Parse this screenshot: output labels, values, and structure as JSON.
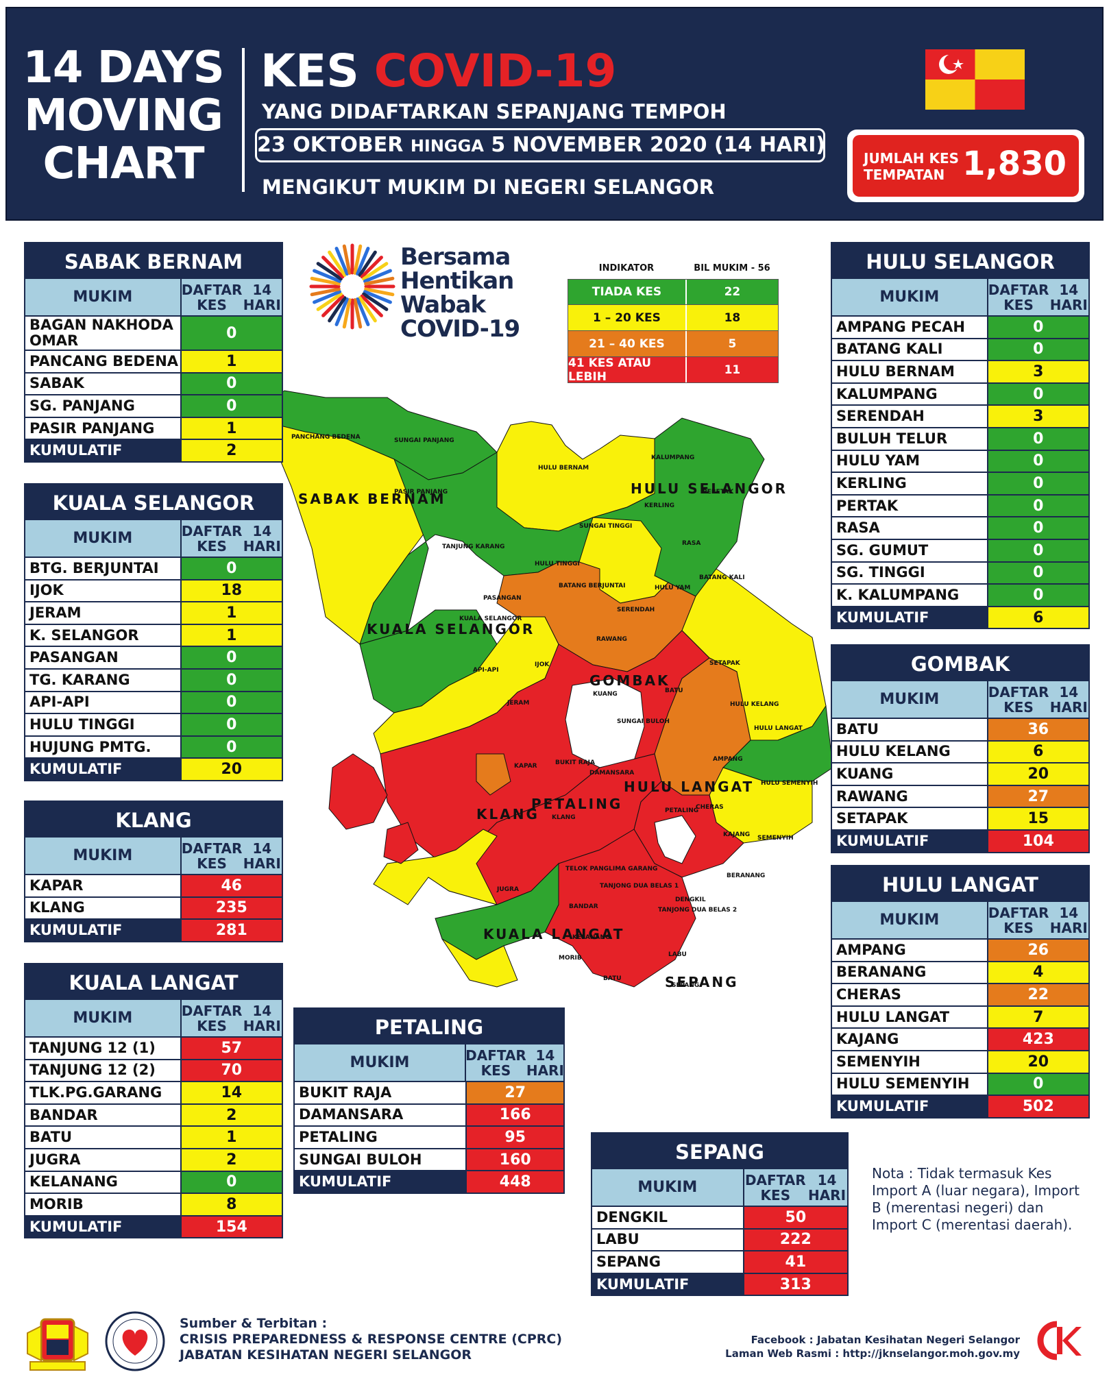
{
  "header": {
    "left_title": [
      "14 DAYS",
      "MOVING",
      "CHART"
    ],
    "title_prefix": "KES",
    "title_main": "COVID-19",
    "subtitle": "YANG DIDAFTARKAN SEPANJANG TEMPOH",
    "date_start": "23 OKTOBER",
    "date_mid": "HINGGA",
    "date_end": "5 NOVEMBER 2020 (14 HARI)",
    "mukim_line": "MENGIKUT MUKIM DI NEGERI SELANGOR",
    "total_label": [
      "JUMLAH KES",
      "TEMPATAN"
    ],
    "total_value": "1,830"
  },
  "colors": {
    "navy": "#1b2a4e",
    "green": "#2fa52f",
    "yellow": "#f9f10a",
    "orange": "#e57b1c",
    "red": "#e52228",
    "header_light_blue": "#a8cfe0"
  },
  "logo": {
    "text": [
      "Bersama",
      "Hentikan",
      "Wabak",
      "COVID-19"
    ]
  },
  "indicator": {
    "head": [
      "INDIKATOR",
      "BIL MUKIM - 56"
    ],
    "rows": [
      {
        "label": "TIADA KES",
        "value": "22",
        "color": "g"
      },
      {
        "label": "1 – 20 KES",
        "value": "18",
        "color": "y"
      },
      {
        "label": "21 – 40 KES",
        "value": "5",
        "color": "o"
      },
      {
        "label": "41 KES ATAU LEBIH",
        "value": "11",
        "color": "r"
      }
    ]
  },
  "col_headers": {
    "mukim": "MUKIM",
    "daftar": [
      "DAFTAR KES",
      "14 HARI"
    ]
  },
  "tables": {
    "sabak_bernam": {
      "title": "SABAK BERNAM",
      "rows": [
        {
          "name": "BAGAN NAKHODA OMAR",
          "value": "0",
          "color": "g"
        },
        {
          "name": "PANCANG BEDENA",
          "value": "1",
          "color": "y"
        },
        {
          "name": "SABAK",
          "value": "0",
          "color": "g"
        },
        {
          "name": "SG. PANJANG",
          "value": "0",
          "color": "g"
        },
        {
          "name": "PASIR PANJANG",
          "value": "1",
          "color": "y"
        }
      ],
      "kumulatif": {
        "name": "KUMULATIF",
        "value": "2",
        "color": "y"
      }
    },
    "kuala_selangor": {
      "title": "KUALA SELANGOR",
      "rows": [
        {
          "name": "BTG. BERJUNTAI",
          "value": "0",
          "color": "g"
        },
        {
          "name": "IJOK",
          "value": "18",
          "color": "y"
        },
        {
          "name": "JERAM",
          "value": "1",
          "color": "y"
        },
        {
          "name": "K. SELANGOR",
          "value": "1",
          "color": "y"
        },
        {
          "name": "PASANGAN",
          "value": "0",
          "color": "g"
        },
        {
          "name": "TG. KARANG",
          "value": "0",
          "color": "g"
        },
        {
          "name": "API-API",
          "value": "0",
          "color": "g"
        },
        {
          "name": "HULU TINGGI",
          "value": "0",
          "color": "g"
        },
        {
          "name": "HUJUNG PMTG.",
          "value": "0",
          "color": "g"
        }
      ],
      "kumulatif": {
        "name": "KUMULATIF",
        "value": "20",
        "color": "y"
      }
    },
    "klang": {
      "title": "KLANG",
      "rows": [
        {
          "name": "KAPAR",
          "value": "46",
          "color": "r"
        },
        {
          "name": "KLANG",
          "value": "235",
          "color": "r"
        }
      ],
      "kumulatif": {
        "name": "KUMULATIF",
        "value": "281",
        "color": "r"
      }
    },
    "kuala_langat": {
      "title": "KUALA LANGAT",
      "rows": [
        {
          "name": "TANJUNG 12 (1)",
          "value": "57",
          "color": "r"
        },
        {
          "name": "TANJUNG 12 (2)",
          "value": "70",
          "color": "r"
        },
        {
          "name": "TLK.PG.GARANG",
          "value": "14",
          "color": "y"
        },
        {
          "name": "BANDAR",
          "value": "2",
          "color": "y"
        },
        {
          "name": "BATU",
          "value": "1",
          "color": "y"
        },
        {
          "name": "JUGRA",
          "value": "2",
          "color": "y"
        },
        {
          "name": "KELANANG",
          "value": "0",
          "color": "g"
        },
        {
          "name": "MORIB",
          "value": "8",
          "color": "y"
        }
      ],
      "kumulatif": {
        "name": "KUMULATIF",
        "value": "154",
        "color": "r"
      }
    },
    "petaling": {
      "title": "PETALING",
      "rows": [
        {
          "name": "BUKIT RAJA",
          "value": "27",
          "color": "o"
        },
        {
          "name": "DAMANSARA",
          "value": "166",
          "color": "r"
        },
        {
          "name": "PETALING",
          "value": "95",
          "color": "r"
        },
        {
          "name": "SUNGAI BULOH",
          "value": "160",
          "color": "r"
        }
      ],
      "kumulatif": {
        "name": "KUMULATIF",
        "value": "448",
        "color": "r"
      }
    },
    "sepang": {
      "title": "SEPANG",
      "rows": [
        {
          "name": "DENGKIL",
          "value": "50",
          "color": "r"
        },
        {
          "name": "LABU",
          "value": "222",
          "color": "r"
        },
        {
          "name": "SEPANG",
          "value": "41",
          "color": "r"
        }
      ],
      "kumulatif": {
        "name": "KUMULATIF",
        "value": "313",
        "color": "r"
      }
    },
    "hulu_selangor": {
      "title": "HULU SELANGOR",
      "rows": [
        {
          "name": "AMPANG PECAH",
          "value": "0",
          "color": "g"
        },
        {
          "name": "BATANG KALI",
          "value": "0",
          "color": "g"
        },
        {
          "name": "HULU BERNAM",
          "value": "3",
          "color": "y"
        },
        {
          "name": "KALUMPANG",
          "value": "0",
          "color": "g"
        },
        {
          "name": "SERENDAH",
          "value": "3",
          "color": "y"
        },
        {
          "name": "BULUH TELUR",
          "value": "0",
          "color": "g"
        },
        {
          "name": "HULU YAM",
          "value": "0",
          "color": "g"
        },
        {
          "name": "KERLING",
          "value": "0",
          "color": "g"
        },
        {
          "name": "PERTAK",
          "value": "0",
          "color": "g"
        },
        {
          "name": "RASA",
          "value": "0",
          "color": "g"
        },
        {
          "name": "SG. GUMUT",
          "value": "0",
          "color": "g"
        },
        {
          "name": "SG. TINGGI",
          "value": "0",
          "color": "g"
        },
        {
          "name": "K. KALUMPANG",
          "value": "0",
          "color": "g"
        }
      ],
      "kumulatif": {
        "name": "KUMULATIF",
        "value": "6",
        "color": "y"
      }
    },
    "gombak": {
      "title": "GOMBAK",
      "rows": [
        {
          "name": "BATU",
          "value": "36",
          "color": "o"
        },
        {
          "name": "HULU KELANG",
          "value": "6",
          "color": "y"
        },
        {
          "name": "KUANG",
          "value": "20",
          "color": "y"
        },
        {
          "name": "RAWANG",
          "value": "27",
          "color": "o"
        },
        {
          "name": "SETAPAK",
          "value": "15",
          "color": "y"
        }
      ],
      "kumulatif": {
        "name": "KUMULATIF",
        "value": "104",
        "color": "r"
      }
    },
    "hulu_langat": {
      "title": "HULU LANGAT",
      "rows": [
        {
          "name": "AMPANG",
          "value": "26",
          "color": "o"
        },
        {
          "name": "BERANANG",
          "value": "4",
          "color": "y"
        },
        {
          "name": "CHERAS",
          "value": "22",
          "color": "o"
        },
        {
          "name": "HULU LANGAT",
          "value": "7",
          "color": "y"
        },
        {
          "name": "KAJANG",
          "value": "423",
          "color": "r"
        },
        {
          "name": "SEMENYIH",
          "value": "20",
          "color": "y"
        },
        {
          "name": "HULU SEMENYIH",
          "value": "0",
          "color": "g"
        }
      ],
      "kumulatif": {
        "name": "KUMULATIF",
        "value": "502",
        "color": "r"
      }
    }
  },
  "map": {
    "district_labels": [
      "SABAK BERNAM",
      "HULU SELANGOR",
      "KUALA SELANGOR",
      "GOMBAK",
      "HULU LANGAT",
      "PETALING",
      "KLANG",
      "KUALA LANGAT",
      "SEPANG"
    ],
    "mukim_labels": [
      "PANCHANG BEDENA",
      "SUNGAI PANJANG",
      "PASIR PANJANG",
      "HULU BERNAM",
      "KALUMPANG",
      "PERETAK",
      "KERLING",
      "SUNGAI TINGGI",
      "RASA",
      "TANJUNG KARANG",
      "HULU TINGGI",
      "BATANG BERJUNTAI",
      "BATANG KALI",
      "HULU YAM",
      "PASANGAN",
      "SERENDAH",
      "RAWANG",
      "KUALA SELANGOR",
      "IJOK",
      "API-API",
      "KUANG",
      "BATU",
      "SETAPAK",
      "JERAM",
      "SUNGAI BULOH",
      "HULU KELANG",
      "HULU LANGAT",
      "KAPAR",
      "BUKIT RAJA",
      "DAMANSARA",
      "AMPANG",
      "HULU SEMENYIH",
      "KLANG",
      "PETALING",
      "CHERAS",
      "KAJANG",
      "SEMENYIH",
      "TELOK PANGLIMA GARANG",
      "TANJONG DUA BELAS 1",
      "TANJONG DUA BELAS 2",
      "BERANANG",
      "JUGRA",
      "BANDAR",
      "DENGKIL",
      "KELANANG",
      "MORIB",
      "LABU",
      "BATU",
      "SEPANG"
    ]
  },
  "note": "Nota : Tidak termasuk Kes Import A (luar negara), Import B (merentasi negeri) dan Import C (merentasi daerah).",
  "footer": {
    "source_label": "Sumber & Terbitan :",
    "source_line1": "CRISIS PREPAREDNESS & RESPONSE CENTRE (CPRC)",
    "source_line2": "JABATAN KESIHATAN NEGERI SELANGOR",
    "facebook": "Facebook : Jabatan Kesihatan Negeri Selangor",
    "website": "Laman Web Rasmi : http://jknselangor.moh.gov.my"
  }
}
